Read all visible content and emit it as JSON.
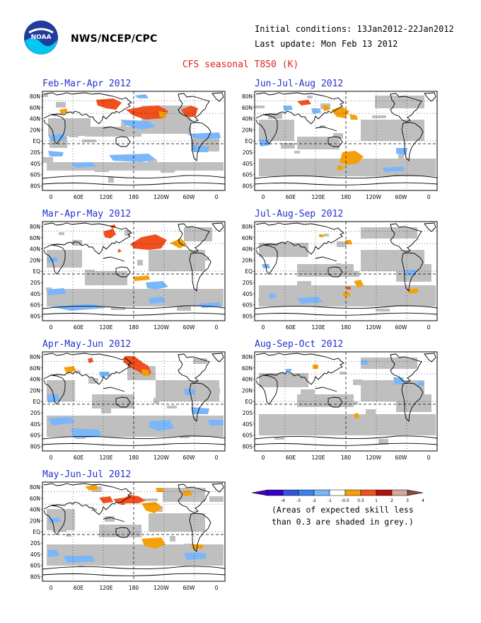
{
  "header": {
    "agency": "NWS/NCEP/CPC",
    "initial_conditions": "Initial conditions: 13Jan2012-22Jan2012",
    "last_update": "Last update: Mon Feb 13 2012",
    "logo_text": "NOAA"
  },
  "title": "CFS seasonal T850 (K)",
  "lat_labels": [
    "80N",
    "60N",
    "40N",
    "20N",
    "EQ",
    "20S",
    "40S",
    "60S",
    "80S"
  ],
  "lon_labels": [
    "0",
    "60E",
    "120E",
    "180",
    "120W",
    "60W",
    "0"
  ],
  "panels": [
    {
      "title": "Feb-Mar-Apr 2012"
    },
    {
      "title": "Mar-Apr-May 2012"
    },
    {
      "title": "Apr-May-Jun 2012"
    },
    {
      "title": "May-Jun-Jul 2012"
    },
    {
      "title": "Jun-Jul-Aug 2012"
    },
    {
      "title": "Jul-Aug-Sep 2012"
    },
    {
      "title": "Aug-Sep-Oct 2012"
    }
  ],
  "legend": {
    "levels": [
      "-4",
      "-3",
      "-2",
      "-1",
      "-0.5",
      "0.5",
      "1",
      "2",
      "3",
      "4"
    ],
    "colors": [
      "#3300cc",
      "#3355dd",
      "#3d7fee",
      "#7ab6fa",
      "#ffffff",
      "#f5a00a",
      "#f0501e",
      "#b21010",
      "#d4a898"
    ],
    "note_line1": "(Areas of expected skill less",
    "note_line2": "than 0.3 are shaded in grey.)"
  }
}
